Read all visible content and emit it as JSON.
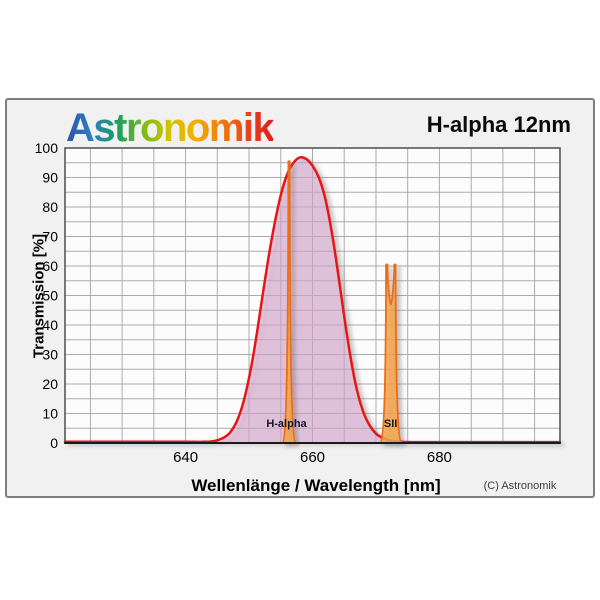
{
  "logo": {
    "text": "Astronomik",
    "gradient": [
      "#2b52a6",
      "#2d7ec4",
      "#19a05e",
      "#7db919",
      "#d2c303",
      "#f3ae00",
      "#ef7d0c",
      "#e8431b",
      "#e01f1f"
    ]
  },
  "header": {
    "product_title": "H-alpha 12nm"
  },
  "footer": {
    "copyright": "(C) Astronomik"
  },
  "chart_data": {
    "type": "area",
    "title": "H-alpha 12nm",
    "xlabel": "Wellenlänge / Wavelength [nm]",
    "ylabel": "Transmission [%]",
    "x_range": [
      621,
      699
    ],
    "y_range": [
      0,
      100
    ],
    "x_ticks": [
      640,
      660,
      680
    ],
    "y_ticks": [
      0,
      10,
      20,
      30,
      40,
      50,
      60,
      70,
      80,
      90,
      100
    ],
    "x_minor_step": 5,
    "y_minor_step": 5,
    "grid": true,
    "colors": {
      "curve": "#e51212",
      "curve_fill": "rgba(224,168,214,0.5)",
      "emission_stroke": "#ed6d12",
      "emission_fill": "rgba(246,164,68,0.8)",
      "grid_line": "#ababab",
      "plot_bg": "#fcfcfc",
      "plot_border": "#4d4d4d",
      "axis_bottom": "#1a1a1a",
      "tick_text": "#000000",
      "emission_label_text": "#15152a"
    },
    "filter_curve": {
      "name": "H-alpha 12nm filter transmission",
      "points": [
        [
          621,
          0.4
        ],
        [
          630,
          0.4
        ],
        [
          640,
          0.4
        ],
        [
          643,
          0.4
        ],
        [
          644,
          0.5
        ],
        [
          645,
          0.9
        ],
        [
          646,
          1.8
        ],
        [
          647,
          3.5
        ],
        [
          648,
          7
        ],
        [
          649,
          13
        ],
        [
          650,
          22
        ],
        [
          651,
          34
        ],
        [
          652,
          48
        ],
        [
          653,
          62
        ],
        [
          654,
          74
        ],
        [
          655,
          84
        ],
        [
          656,
          91
        ],
        [
          657,
          95
        ],
        [
          658,
          96.8
        ],
        [
          659,
          96.3
        ],
        [
          660,
          94
        ],
        [
          661,
          90
        ],
        [
          662,
          83
        ],
        [
          663,
          72
        ],
        [
          664,
          58
        ],
        [
          665,
          43
        ],
        [
          666,
          29
        ],
        [
          667,
          18
        ],
        [
          668,
          10.5
        ],
        [
          669,
          6
        ],
        [
          670,
          3.2
        ],
        [
          671,
          1.8
        ],
        [
          672,
          1
        ],
        [
          673,
          0.6
        ],
        [
          674,
          0.4
        ],
        [
          676,
          0.3
        ],
        [
          685,
          0.3
        ],
        [
          699,
          0.3
        ]
      ]
    },
    "emission_groups": [
      {
        "label": "H-alpha",
        "label_x_nm": 655.9,
        "label_y_percent": 5.4,
        "lines": [
          {
            "wavelength_nm": 656.3,
            "peak_percent": 95.5
          }
        ]
      },
      {
        "label": "SII",
        "label_x_nm": 672.3,
        "label_y_percent": 5.4,
        "saddle_percent": 47,
        "lines": [
          {
            "wavelength_nm": 671.7,
            "peak_percent": 60.5
          },
          {
            "wavelength_nm": 673.0,
            "peak_percent": 60.5
          }
        ]
      }
    ]
  }
}
